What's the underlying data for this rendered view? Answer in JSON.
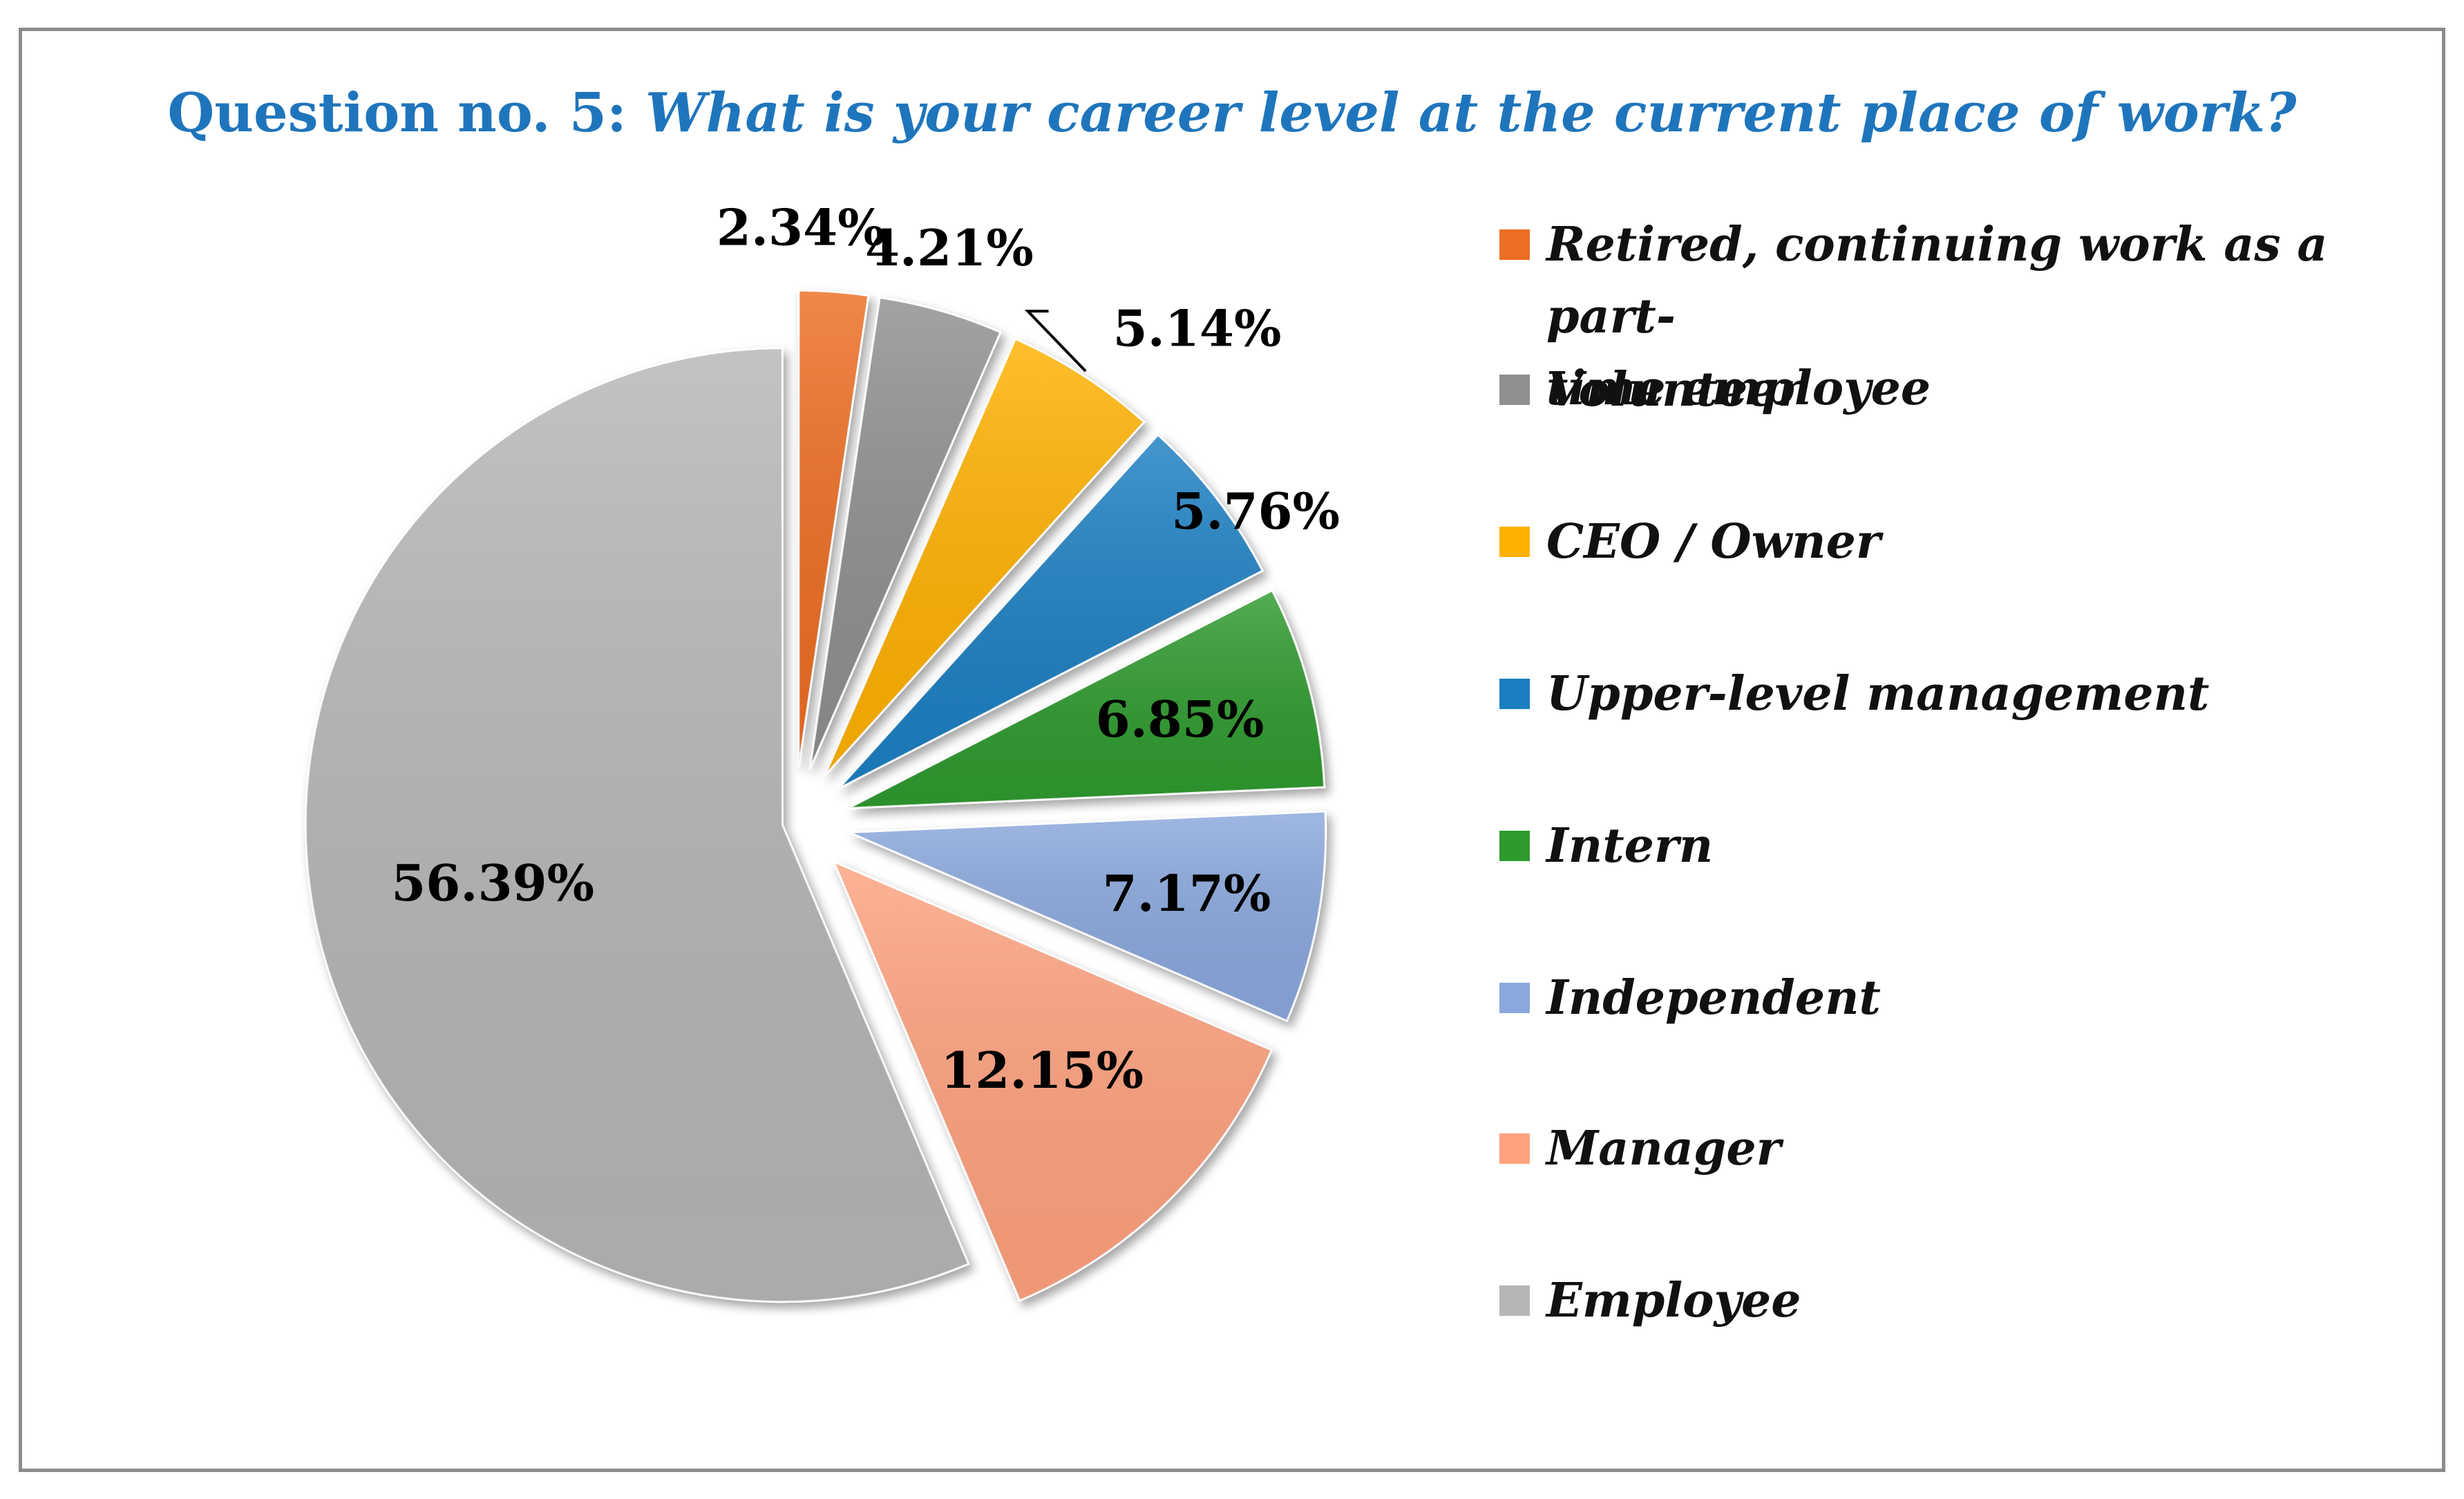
{
  "chart_data": {
    "type": "pie",
    "title_prefix": "Question no. 5: ",
    "title_question": "What is your career level at the current place of work?",
    "slices": [
      {
        "label": "Retired, continuing work as a part-time employee",
        "legend_lines": [
          "Retired, continuing work as a part-",
          "time employee"
        ],
        "value": 2.34,
        "value_label": "2.34%",
        "color": "#ed6d23"
      },
      {
        "label": "Volunteer",
        "legend_lines": [
          "Volunteer"
        ],
        "value": 4.21,
        "value_label": "4.21%",
        "color": "#8f8f8f"
      },
      {
        "label": "CEO / Owner",
        "legend_lines": [
          "CEO / Owner"
        ],
        "value": 5.14,
        "value_label": "5.14%",
        "color": "#ffb100"
      },
      {
        "label": "Upper-level management",
        "legend_lines": [
          "Upper-level management"
        ],
        "value": 5.76,
        "value_label": "5.76%",
        "color": "#1a7fc2"
      },
      {
        "label": "Intern",
        "legend_lines": [
          "Intern"
        ],
        "value": 6.85,
        "value_label": "6.85%",
        "color": "#2e9a2e"
      },
      {
        "label": "Independent",
        "legend_lines": [
          "Independent"
        ],
        "value": 7.17,
        "value_label": "7.17%",
        "color": "#8aa8dd"
      },
      {
        "label": "Manager",
        "legend_lines": [
          "Manager"
        ],
        "value": 12.15,
        "value_label": "12.15%",
        "color": "#ffa27f"
      },
      {
        "label": "Employee",
        "legend_lines": [
          "Employee"
        ],
        "value": 56.39,
        "value_label": "56.39%",
        "color": "#b6b6b6"
      }
    ],
    "legend_position": "right"
  }
}
